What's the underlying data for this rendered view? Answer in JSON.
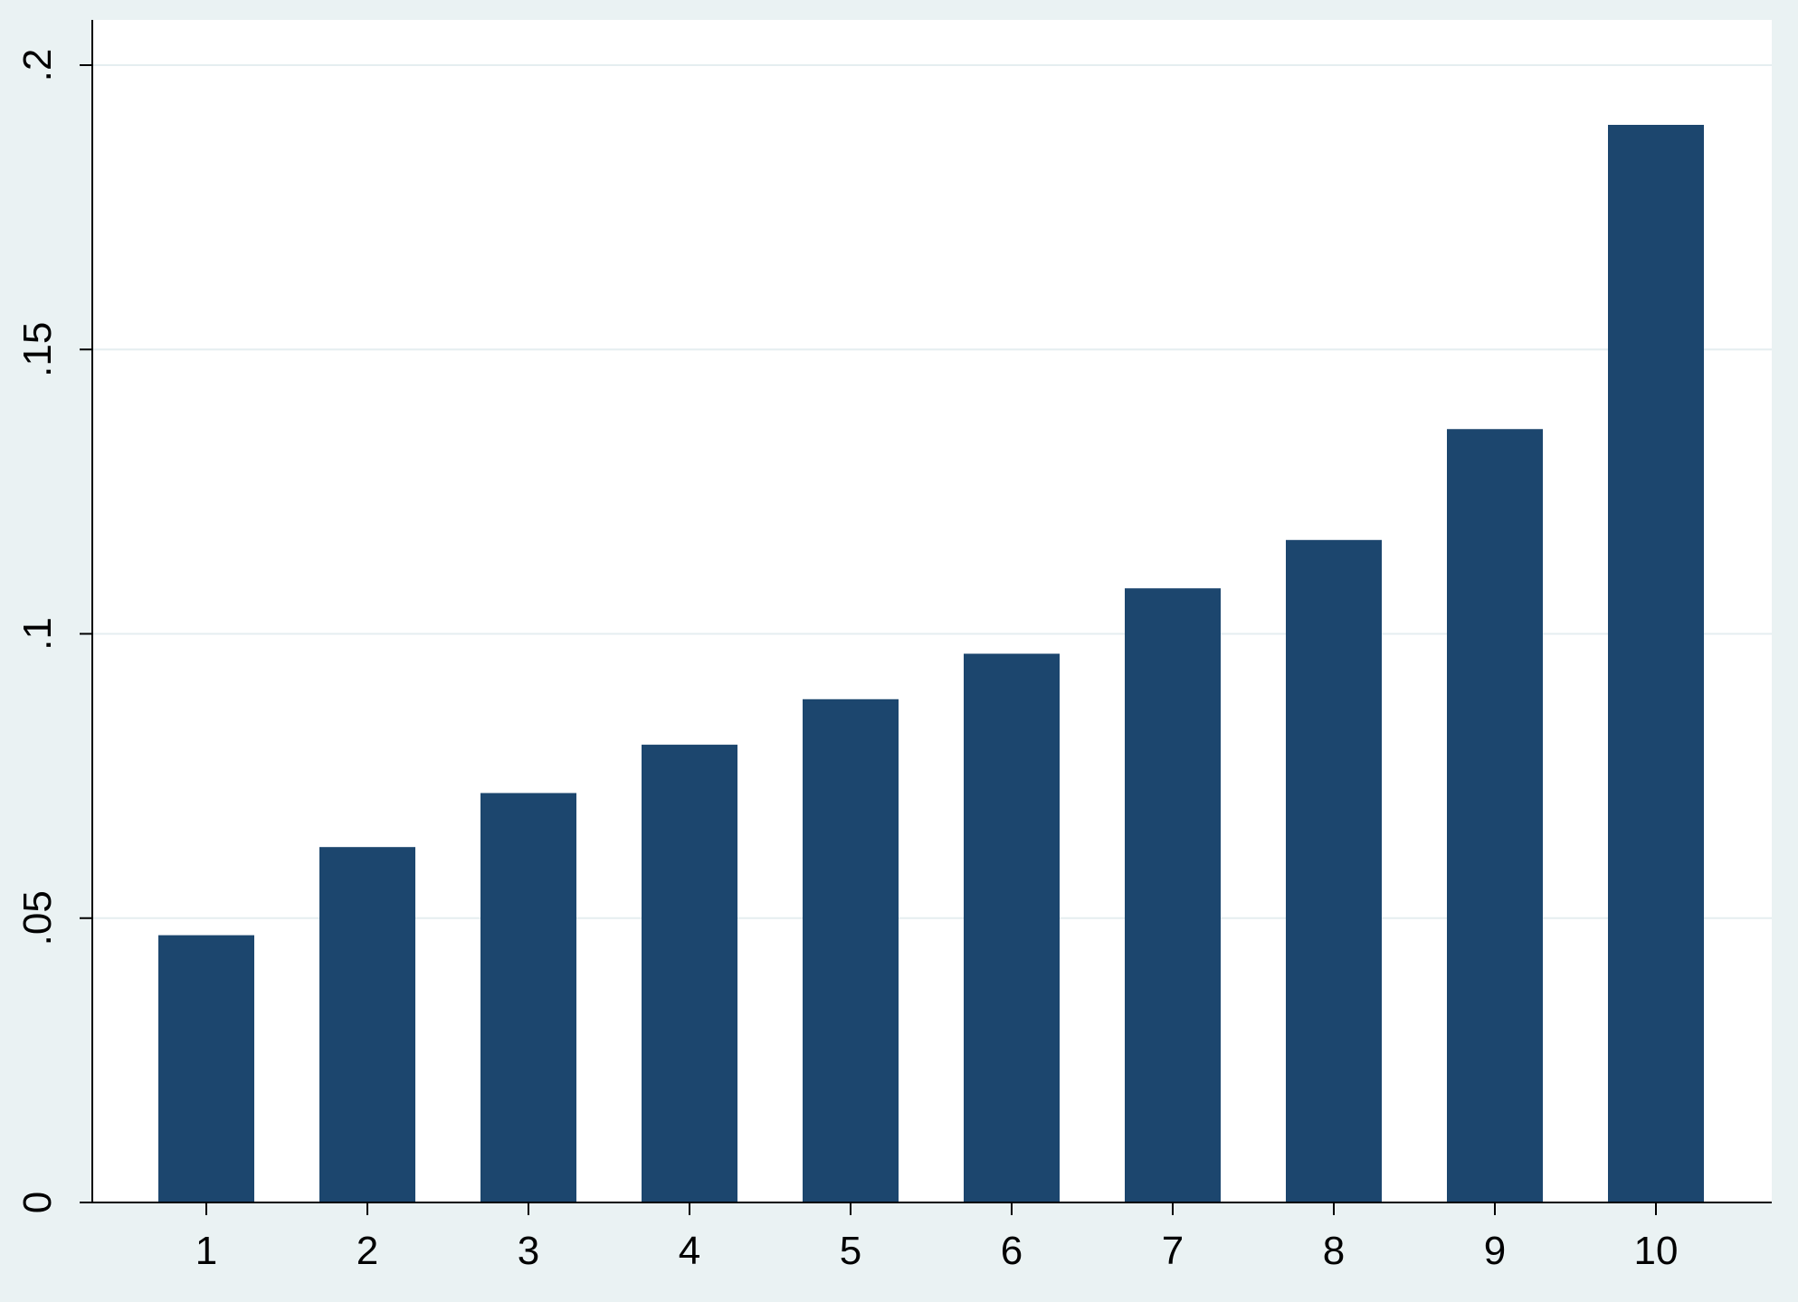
{
  "chart_data": {
    "type": "bar",
    "title": "",
    "xlabel": "",
    "ylabel": "",
    "categories": [
      "1",
      "2",
      "3",
      "4",
      "5",
      "6",
      "7",
      "8",
      "9",
      "10"
    ],
    "values": [
      0.047,
      0.0625,
      0.072,
      0.0805,
      0.0885,
      0.0965,
      0.108,
      0.1165,
      0.136,
      0.1895
    ],
    "ylim": [
      0,
      0.2
    ],
    "yticks": [
      0,
      0.05,
      0.1,
      0.15,
      0.2
    ],
    "ytick_labels": [
      "0",
      ".05",
      ".1",
      ".15",
      ".2"
    ],
    "grid": true,
    "colors": {
      "bar": "#1c466e",
      "background": "#eaf2f3",
      "plot_area": "#ffffff",
      "gridline": "#e5eef0",
      "axis": "#000000"
    }
  }
}
